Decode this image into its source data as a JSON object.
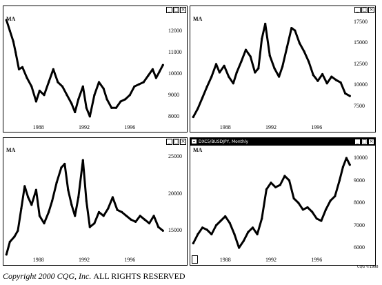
{
  "chart_data": [
    {
      "type": "line",
      "label": "MA",
      "x_ticks": [
        "1988",
        "1992",
        "1996"
      ],
      "y_ticks": [
        "8000",
        "9000",
        "10000",
        "11000",
        "12000"
      ],
      "ylim": [
        7700,
        12600
      ],
      "xlim": [
        1985.0,
        1999.0
      ],
      "points": [
        [
          1985.2,
          12500
        ],
        [
          1985.5,
          12000
        ],
        [
          1985.8,
          11500
        ],
        [
          1986.0,
          11000
        ],
        [
          1986.3,
          10200
        ],
        [
          1986.6,
          10300
        ],
        [
          1987.0,
          9800
        ],
        [
          1987.4,
          9400
        ],
        [
          1987.8,
          8700
        ],
        [
          1988.1,
          9200
        ],
        [
          1988.5,
          9000
        ],
        [
          1988.9,
          9600
        ],
        [
          1989.3,
          10200
        ],
        [
          1989.7,
          9600
        ],
        [
          1990.1,
          9400
        ],
        [
          1990.5,
          9000
        ],
        [
          1990.9,
          8600
        ],
        [
          1991.2,
          8200
        ],
        [
          1991.5,
          8800
        ],
        [
          1991.9,
          9400
        ],
        [
          1992.2,
          8400
        ],
        [
          1992.5,
          8000
        ],
        [
          1992.9,
          9000
        ],
        [
          1993.3,
          9600
        ],
        [
          1993.7,
          9300
        ],
        [
          1994.0,
          8800
        ],
        [
          1994.4,
          8400
        ],
        [
          1994.8,
          8400
        ],
        [
          1995.2,
          8700
        ],
        [
          1995.6,
          8800
        ],
        [
          1996.0,
          9000
        ],
        [
          1996.4,
          9400
        ],
        [
          1996.8,
          9500
        ],
        [
          1997.2,
          9600
        ],
        [
          1997.6,
          9900
        ],
        [
          1998.0,
          10200
        ],
        [
          1998.3,
          9800
        ],
        [
          1998.6,
          10100
        ],
        [
          1998.9,
          10400
        ]
      ]
    },
    {
      "type": "line",
      "label": "MA",
      "x_ticks": [
        "1988",
        "1992",
        "1996"
      ],
      "y_ticks": [
        "7500",
        "10000",
        "12500",
        "15000",
        "17500"
      ],
      "ylim": [
        5500,
        18000
      ],
      "xlim": [
        1985.0,
        1999.0
      ],
      "points": [
        [
          1985.2,
          6200
        ],
        [
          1985.6,
          7200
        ],
        [
          1986.0,
          8500
        ],
        [
          1986.4,
          9800
        ],
        [
          1986.8,
          11000
        ],
        [
          1987.2,
          12500
        ],
        [
          1987.5,
          11500
        ],
        [
          1987.9,
          12300
        ],
        [
          1988.3,
          11000
        ],
        [
          1988.7,
          10200
        ],
        [
          1989.0,
          11500
        ],
        [
          1989.4,
          12800
        ],
        [
          1989.8,
          14200
        ],
        [
          1990.2,
          13400
        ],
        [
          1990.6,
          11500
        ],
        [
          1990.9,
          12000
        ],
        [
          1991.2,
          15500
        ],
        [
          1991.5,
          17300
        ],
        [
          1991.9,
          13500
        ],
        [
          1992.3,
          12000
        ],
        [
          1992.7,
          11000
        ],
        [
          1993.0,
          12200
        ],
        [
          1993.4,
          14500
        ],
        [
          1993.8,
          16800
        ],
        [
          1994.1,
          16500
        ],
        [
          1994.5,
          15000
        ],
        [
          1994.9,
          14000
        ],
        [
          1995.3,
          12800
        ],
        [
          1995.7,
          11200
        ],
        [
          1996.1,
          10500
        ],
        [
          1996.5,
          11300
        ],
        [
          1996.9,
          10200
        ],
        [
          1997.3,
          11000
        ],
        [
          1997.7,
          10600
        ],
        [
          1998.1,
          10300
        ],
        [
          1998.5,
          9000
        ],
        [
          1998.9,
          8700
        ]
      ]
    },
    {
      "type": "line",
      "label": "MA",
      "x_ticks": [
        "1988",
        "1992",
        "1996"
      ],
      "y_ticks": [
        "15000",
        "20000",
        "25000"
      ],
      "ylim": [
        11500,
        26000
      ],
      "xlim": [
        1985.0,
        1999.0
      ],
      "points": [
        [
          1985.2,
          11800
        ],
        [
          1985.5,
          13500
        ],
        [
          1985.9,
          14200
        ],
        [
          1986.2,
          15000
        ],
        [
          1986.5,
          18000
        ],
        [
          1986.8,
          21000
        ],
        [
          1987.1,
          19500
        ],
        [
          1987.4,
          18500
        ],
        [
          1987.8,
          20500
        ],
        [
          1988.1,
          17000
        ],
        [
          1988.5,
          16000
        ],
        [
          1988.9,
          17500
        ],
        [
          1989.2,
          19000
        ],
        [
          1989.6,
          21500
        ],
        [
          1990.0,
          23500
        ],
        [
          1990.3,
          24000
        ],
        [
          1990.6,
          20500
        ],
        [
          1990.9,
          18500
        ],
        [
          1991.2,
          17000
        ],
        [
          1991.5,
          19500
        ],
        [
          1991.9,
          24500
        ],
        [
          1992.2,
          19000
        ],
        [
          1992.5,
          15500
        ],
        [
          1992.9,
          16000
        ],
        [
          1993.3,
          17500
        ],
        [
          1993.7,
          17000
        ],
        [
          1994.1,
          18000
        ],
        [
          1994.5,
          19500
        ],
        [
          1994.9,
          17800
        ],
        [
          1995.3,
          17500
        ],
        [
          1995.7,
          17000
        ],
        [
          1996.1,
          16500
        ],
        [
          1996.5,
          16200
        ],
        [
          1996.9,
          17000
        ],
        [
          1997.3,
          16500
        ],
        [
          1997.7,
          16000
        ],
        [
          1998.1,
          17000
        ],
        [
          1998.5,
          15500
        ],
        [
          1998.9,
          15000
        ]
      ]
    },
    {
      "type": "line",
      "label": "MA",
      "x_ticks": [
        "1988",
        "1992",
        "1996"
      ],
      "y_ticks": [
        "6000",
        "7000",
        "8000",
        "9000",
        "10000"
      ],
      "ylim": [
        5600,
        10400
      ],
      "xlim": [
        1985.0,
        1999.0
      ],
      "points": [
        [
          1985.2,
          6200
        ],
        [
          1985.6,
          6600
        ],
        [
          1986.0,
          6900
        ],
        [
          1986.4,
          6800
        ],
        [
          1986.8,
          6600
        ],
        [
          1987.2,
          7000
        ],
        [
          1987.6,
          7200
        ],
        [
          1988.0,
          7400
        ],
        [
          1988.4,
          7100
        ],
        [
          1988.8,
          6600
        ],
        [
          1989.2,
          6000
        ],
        [
          1989.6,
          6300
        ],
        [
          1990.0,
          6700
        ],
        [
          1990.4,
          6900
        ],
        [
          1990.8,
          6600
        ],
        [
          1991.2,
          7300
        ],
        [
          1991.6,
          8600
        ],
        [
          1992.0,
          8900
        ],
        [
          1992.4,
          8700
        ],
        [
          1992.8,
          8800
        ],
        [
          1993.2,
          9200
        ],
        [
          1993.6,
          9000
        ],
        [
          1994.0,
          8200
        ],
        [
          1994.4,
          8000
        ],
        [
          1994.8,
          7700
        ],
        [
          1995.2,
          7800
        ],
        [
          1995.6,
          7600
        ],
        [
          1996.0,
          7300
        ],
        [
          1996.4,
          7200
        ],
        [
          1996.8,
          7700
        ],
        [
          1997.2,
          8100
        ],
        [
          1997.6,
          8300
        ],
        [
          1998.0,
          9000
        ],
        [
          1998.3,
          9600
        ],
        [
          1998.6,
          10000
        ],
        [
          1998.9,
          9700
        ]
      ]
    }
  ],
  "window_title": "DXC5/BUSDJPY, Monthly",
  "window_buttons": [
    "_",
    "□",
    "×"
  ],
  "cqg_mark": "CQG ©1998",
  "footer": {
    "copyright": "Copyright 2000 CQG, Inc.",
    "rights": "ALL RIGHTS RESERVED"
  }
}
